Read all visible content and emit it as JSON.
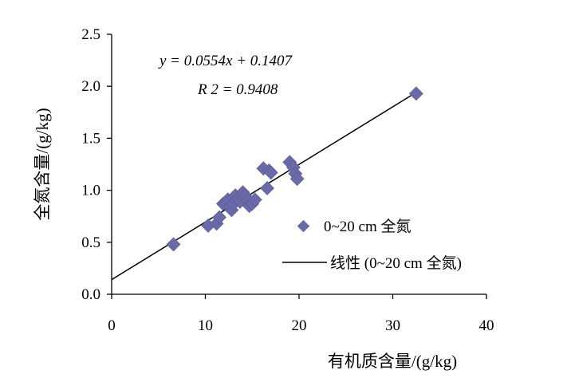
{
  "chart_data": {
    "type": "scatter",
    "xlabel": "有机质含量/(g/kg)",
    "ylabel": "全氮含量/(g/kg)",
    "xlim": [
      0,
      40
    ],
    "ylim": [
      0,
      2.5
    ],
    "x_ticks": [
      "0",
      "10",
      "20",
      "30",
      "40"
    ],
    "y_ticks": [
      "0.0",
      "0.5",
      "1.0",
      "1.5",
      "2.0",
      "2.5"
    ],
    "grid": false,
    "legend_position": "right",
    "series": [
      {
        "name": "0~20 cm  全氮",
        "marker": "diamond",
        "color": "#6a6aa8",
        "points": [
          [
            6.6,
            0.48
          ],
          [
            10.3,
            0.66
          ],
          [
            11.2,
            0.68
          ],
          [
            11.5,
            0.74
          ],
          [
            11.9,
            0.87
          ],
          [
            12.2,
            0.88
          ],
          [
            12.4,
            0.91
          ],
          [
            12.6,
            0.84
          ],
          [
            12.8,
            0.81
          ],
          [
            13.0,
            0.87
          ],
          [
            13.2,
            0.95
          ],
          [
            13.5,
            0.92
          ],
          [
            13.7,
            0.89
          ],
          [
            14.0,
            0.98
          ],
          [
            14.2,
            0.95
          ],
          [
            14.5,
            0.9
          ],
          [
            14.7,
            0.85
          ],
          [
            15.0,
            0.87
          ],
          [
            15.3,
            0.91
          ],
          [
            16.2,
            1.21
          ],
          [
            16.6,
            1.02
          ],
          [
            16.8,
            1.19
          ],
          [
            17.0,
            1.17
          ],
          [
            19.0,
            1.27
          ],
          [
            19.4,
            1.22
          ],
          [
            19.6,
            1.16
          ],
          [
            19.8,
            1.11
          ],
          [
            32.5,
            1.93
          ]
        ]
      },
      {
        "name": "线性 (0~20 cm 全氮)",
        "type": "line",
        "color": "#000000",
        "x": [
          0,
          32.5
        ],
        "slope": 0.0554,
        "intercept": 0.1407
      }
    ],
    "annotations": {
      "equation": "y  = 0.0554x  + 0.1407",
      "r2": "R 2 = 0.9408"
    }
  }
}
